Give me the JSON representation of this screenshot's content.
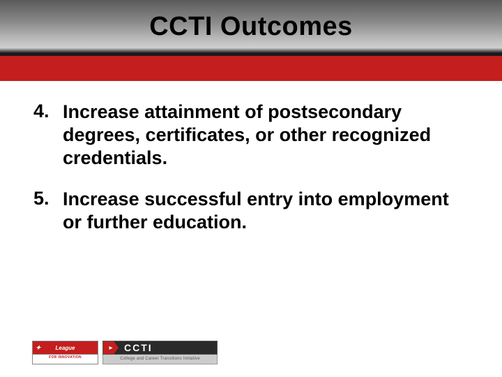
{
  "header": {
    "title": "CCTI Outcomes",
    "gradient_start": "#5a5a5a",
    "gradient_end": "#d0d0d0",
    "title_color": "#000000",
    "title_fontsize": 38
  },
  "band": {
    "color": "#c41e1e",
    "height": 36
  },
  "items": [
    {
      "number": "4.",
      "text": "Increase attainment of postsecondary degrees, certificates, or other recognized credentials."
    },
    {
      "number": "5.",
      "text": "Increase successful entry into employment or further education."
    }
  ],
  "content": {
    "fontsize": 27,
    "font_weight": "bold",
    "color": "#000000"
  },
  "footer": {
    "league": {
      "top_text": "League",
      "bottom_text": "FOR INNOVATION",
      "bg_color": "#c41e1e"
    },
    "ccti": {
      "label": "CCTI",
      "subtitle": "College and Career Transitions Initiative",
      "bg_color": "#2a2a2a",
      "arrow_color": "#c41e1e"
    }
  }
}
